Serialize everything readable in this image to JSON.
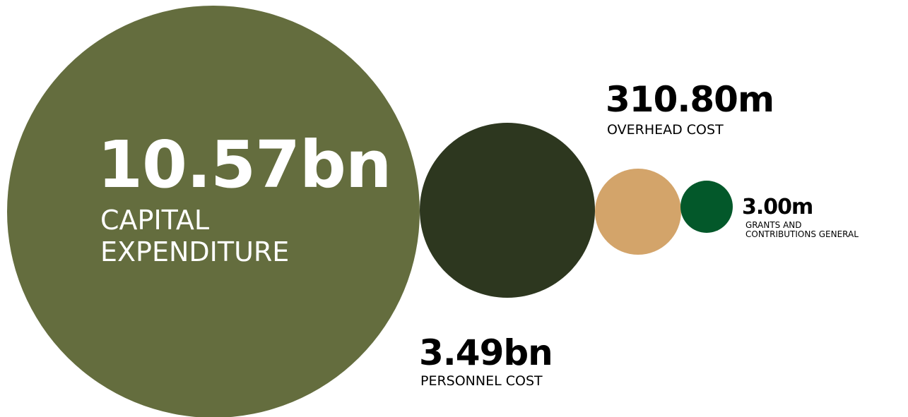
{
  "chart_data": {
    "type": "bubble",
    "items": [
      {
        "value_label": "10.57bn",
        "label_lines": [
          "CAPITAL",
          "EXPENDITURE"
        ],
        "value": 10570000000,
        "color": "#646d3e"
      },
      {
        "value_label": "3.49bn",
        "label_lines": [
          "PERSONNEL COST"
        ],
        "value": 3490000000,
        "color": "#2d371f"
      },
      {
        "value_label": "310.80m",
        "label_lines": [
          "OVERHEAD COST"
        ],
        "value": 310800000,
        "color": "#d3a46a"
      },
      {
        "value_label": "3.00m",
        "label_lines": [
          "GRANTS AND",
          "CONTRIBUTIONS GENERAL"
        ],
        "value": 3000000,
        "color": "#03582a"
      }
    ]
  }
}
